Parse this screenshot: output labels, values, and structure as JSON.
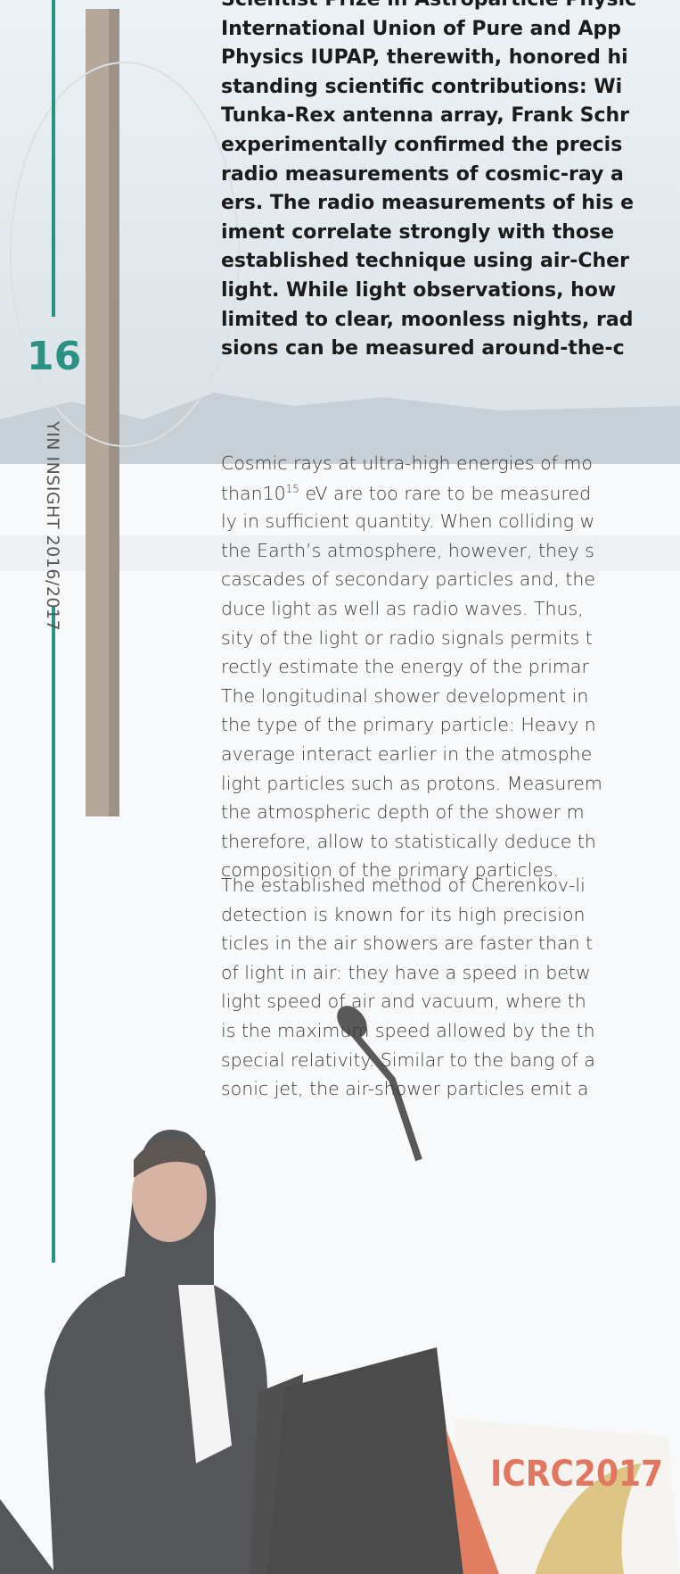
{
  "page_number": "16",
  "running_title": "YIN INSIGHT 2016/2017",
  "lead_lines": [
    "Scientist Prize in Astroparticle Physic",
    "International Union of Pure and App",
    "Physics IUPAP, therewith, honored hi",
    "standing scientific contributions: Wi",
    "Tunka-Rex antenna array, Frank Schr",
    "experimentally confirmed the precis",
    "radio measurements of cosmic-ray a",
    "ers. The radio measurements of his e",
    "iment correlate strongly with those",
    "established technique using air-Cher",
    "light. While light observations, how",
    "limited to clear, moonless nights, rad",
    "sions can be measured around-the-c"
  ],
  "paragraphs": [
    {
      "lines": [
        "Cosmic rays at ultra-high energies of mo",
        {
          "before": "than10",
          "sup": "15",
          "after": " eV are too rare to be measured"
        },
        "ly in sufficient quantity. When colliding w",
        "the Earth’s atmosphere, however, they s",
        "cascades of secondary particles and, the",
        "duce light as well as radio waves. Thus,",
        "sity of the light or radio signals permits t",
        "rectly estimate the energy of the primar",
        "The longitudinal shower development in",
        "the type of the primary particle: Heavy n",
        "average interact earlier in the atmosphe",
        "light particles such as protons. Measurem",
        "the atmospheric depth of the shower m",
        "therefore, allow to statistically deduce th",
        "composition of the primary particles."
      ]
    },
    {
      "lines": [
        "The established method of Cherenkov-li",
        "detection is known for its high precision",
        "ticles in the air showers are faster than t",
        "of light in air: they have a speed in betw",
        "light speed of air and vacuum, where th",
        "is the maximum speed allowed by the th",
        "special relativity. Similar to the bang of a",
        "sonic jet, the air-shower particles  emit a"
      ]
    }
  ],
  "photo_banner": "ICRC2017"
}
